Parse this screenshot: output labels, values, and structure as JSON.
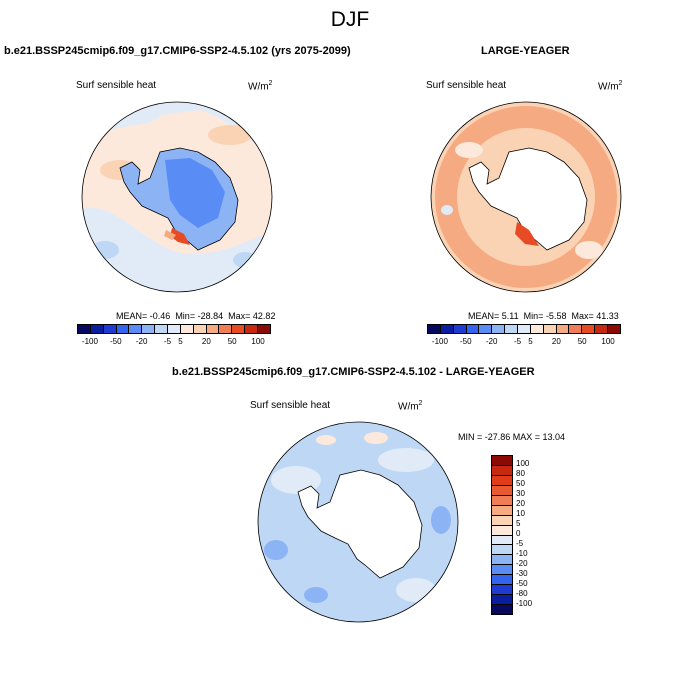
{
  "figure": {
    "title": "DJF"
  },
  "panels": [
    {
      "title": "b.e21.BSSP245cmip6.f09_g17.CMIP6-SSP2-4.5.102 (yrs 2075-2099)",
      "variable": "Surf sensible heat",
      "units": "W/m",
      "units_exp": "2",
      "stats": {
        "mean_label": "MEAN=",
        "mean": "-0.46",
        "min_label": "Min=",
        "min": "-28.84",
        "max_label": "Max=",
        "max": "42.82"
      }
    },
    {
      "title": "LARGE-YEAGER",
      "variable": "Surf sensible heat",
      "units": "W/m",
      "units_exp": "2",
      "stats": {
        "mean_label": "MEAN=",
        "mean": "5.11",
        "min_label": "Min=",
        "min": "-5.58",
        "max_label": "Max=",
        "max": "41.33"
      }
    },
    {
      "title": "b.e21.BSSP245cmip6.f09_g17.CMIP6-SSP2-4.5.102 - LARGE-YEAGER",
      "variable": "Surf sensible heat",
      "units": "W/m",
      "units_exp": "2",
      "stats_text": "MIN = -27.86  MAX = 13.04"
    }
  ],
  "colorbar_top": {
    "colors": [
      "#08085e",
      "#0c1ea0",
      "#1e3cd2",
      "#3264f0",
      "#5a8cf5",
      "#8cb4f5",
      "#bed7f5",
      "#e1ebf8",
      "#fde9dc",
      "#fad2b4",
      "#f5aa82",
      "#f07d55",
      "#e64b23",
      "#c8280f",
      "#8c0a05"
    ],
    "labels": [
      "-100",
      "-50",
      "-20",
      "-5",
      "5",
      "20",
      "50",
      "100"
    ]
  },
  "colorbar_diff": {
    "colors": [
      "#8c0a05",
      "#c8280f",
      "#e03c19",
      "#ea5a32",
      "#f07d55",
      "#f5aa82",
      "#fad2b4",
      "#fde9dc",
      "#e1ebf8",
      "#bed7f5",
      "#8cb4f5",
      "#5a8cf5",
      "#3264f0",
      "#1e3cd2",
      "#0c1ea0",
      "#08085e"
    ],
    "labels": [
      "100",
      "80",
      "50",
      "30",
      "20",
      "10",
      "5",
      "0",
      "-5",
      "-10",
      "-20",
      "-30",
      "-50",
      "-80",
      "-100"
    ]
  }
}
